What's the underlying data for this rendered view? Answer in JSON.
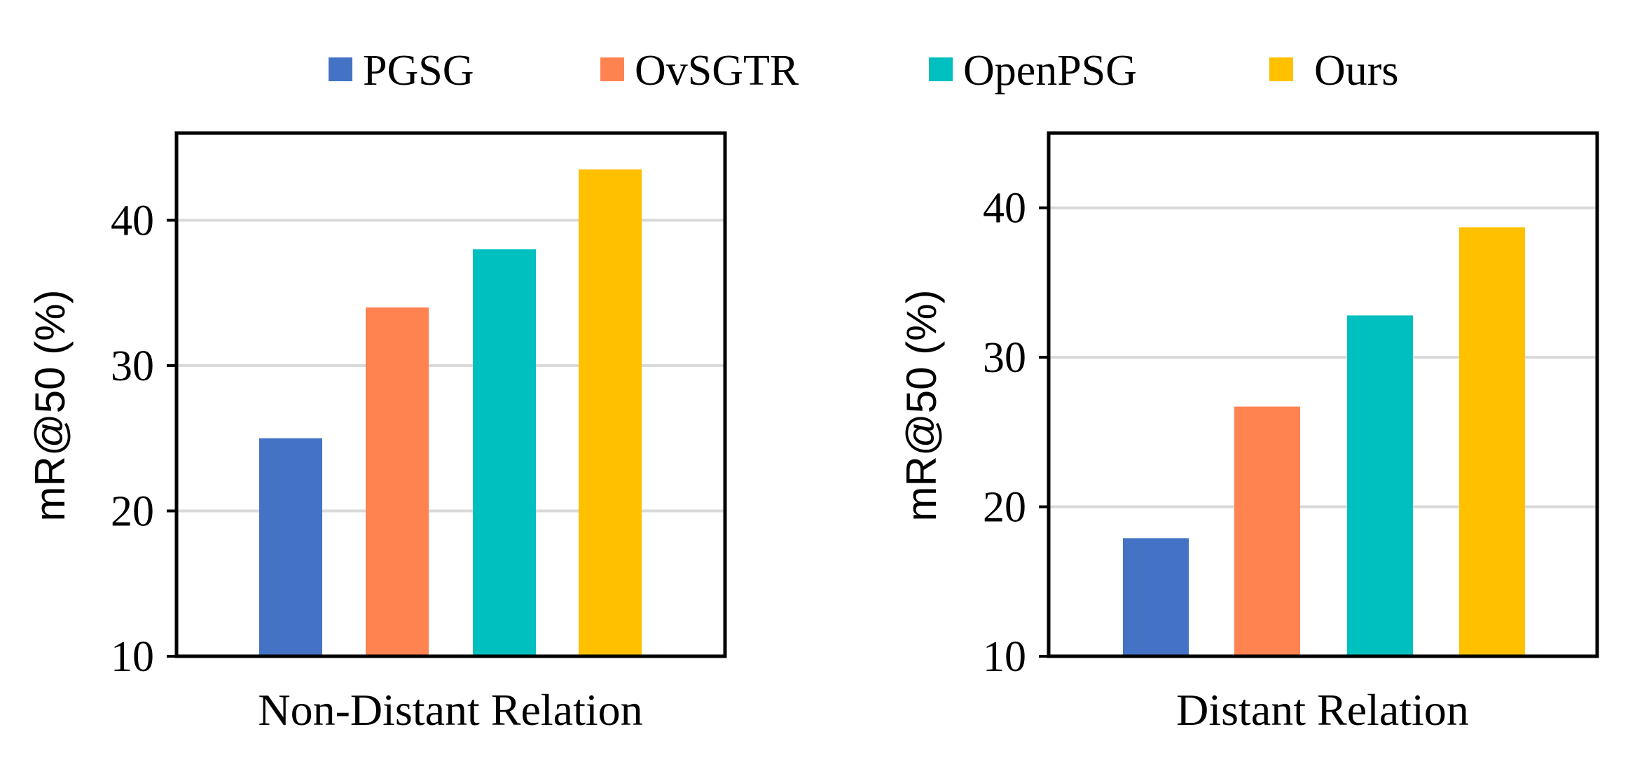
{
  "legend": [
    {
      "label": "PGSG",
      "color": "#4472C4"
    },
    {
      "label": "OvSGTR",
      "color": "#FF8351"
    },
    {
      "label": "OpenPSG",
      "color": "#00BFBF"
    },
    {
      "label": "Ours",
      "color": "#FFC000"
    }
  ],
  "chart_data": [
    {
      "type": "bar",
      "title": "",
      "xlabel": "Non-Distant Relation",
      "ylabel": "mR@50 (%)",
      "ylim": [
        10,
        46
      ],
      "yticks": [
        10,
        20,
        30,
        40
      ],
      "grid": true,
      "categories": [
        "PGSG",
        "OvSGTR",
        "OpenPSG",
        "Ours"
      ],
      "values": [
        25.0,
        34.0,
        38.0,
        43.5
      ]
    },
    {
      "type": "bar",
      "title": "",
      "xlabel": "Distant Relation",
      "ylabel": "mR@50 (%)",
      "ylim": [
        10,
        45
      ],
      "yticks": [
        10,
        20,
        30,
        40
      ],
      "grid": true,
      "categories": [
        "PGSG",
        "OvSGTR",
        "OpenPSG",
        "Ours"
      ],
      "values": [
        17.9,
        26.7,
        32.8,
        38.7
      ]
    }
  ]
}
